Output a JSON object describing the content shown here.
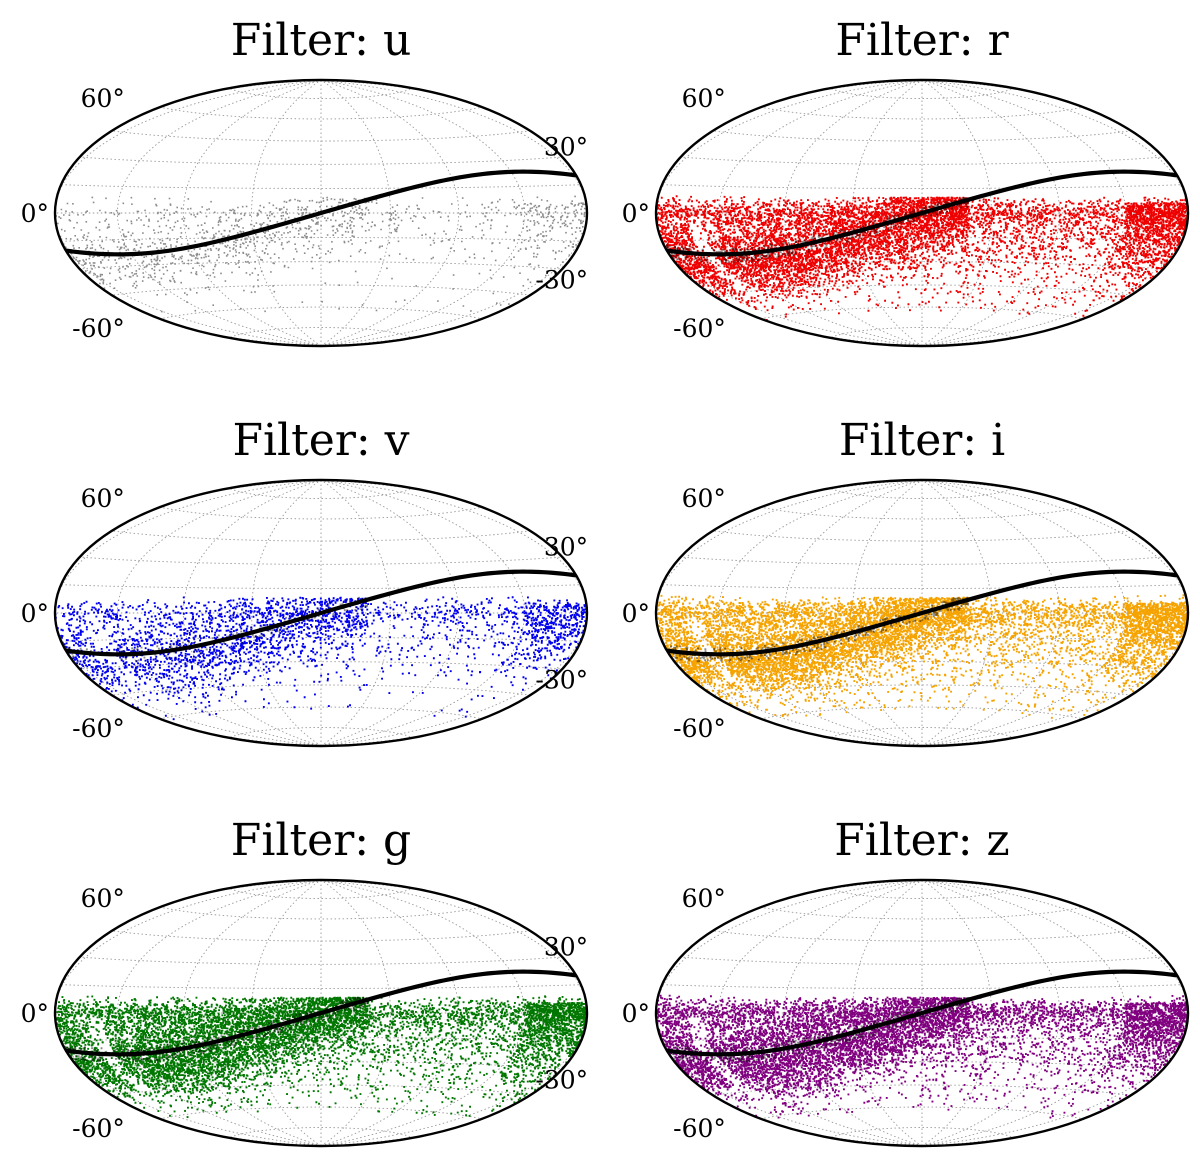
{
  "chart_data": [
    {
      "type": "scatter",
      "title": "Filter: u",
      "projection": "hammer",
      "point_color": "#8c8c8c",
      "density": "sparse",
      "ytick_labels": [
        "60°",
        "30°",
        "0°",
        "-30°",
        "-60°"
      ],
      "ytick_values": [
        60,
        30,
        0,
        -30,
        -60
      ],
      "grid": true,
      "ecliptic_amplitude_deg": 23.4
    },
    {
      "type": "scatter",
      "title": "Filter: r",
      "projection": "hammer",
      "point_color": "#ee0000",
      "density": "dense",
      "ytick_labels": [
        "60°",
        "30°",
        "0°",
        "-30°",
        "-60°"
      ],
      "ytick_values": [
        60,
        30,
        0,
        -30,
        -60
      ],
      "grid": true,
      "ecliptic_amplitude_deg": 23.4
    },
    {
      "type": "scatter",
      "title": "Filter: v",
      "projection": "hammer",
      "point_color": "#0000ee",
      "density": "medium",
      "ytick_labels": [
        "60°",
        "30°",
        "0°",
        "-30°",
        "-60°"
      ],
      "ytick_values": [
        60,
        30,
        0,
        -30,
        -60
      ],
      "grid": true,
      "ecliptic_amplitude_deg": 23.4
    },
    {
      "type": "scatter",
      "title": "Filter: i",
      "projection": "hammer",
      "point_color": "#f5a300",
      "density": "dense",
      "ytick_labels": [
        "60°",
        "30°",
        "0°",
        "-30°",
        "-60°"
      ],
      "ytick_values": [
        60,
        30,
        0,
        -30,
        -60
      ],
      "grid": true,
      "ecliptic_amplitude_deg": 23.4
    },
    {
      "type": "scatter",
      "title": "Filter: g",
      "projection": "hammer",
      "point_color": "#007700",
      "density": "dense",
      "ytick_labels": [
        "60°",
        "30°",
        "0°",
        "-30°",
        "-60°"
      ],
      "ytick_values": [
        60,
        30,
        0,
        -30,
        -60
      ],
      "grid": true,
      "ecliptic_amplitude_deg": 23.4
    },
    {
      "type": "scatter",
      "title": "Filter: z",
      "projection": "hammer",
      "point_color": "#800080",
      "density": "dense",
      "ytick_labels": [
        "60°",
        "30°",
        "0°",
        "-30°",
        "-60°"
      ],
      "ytick_values": [
        60,
        30,
        0,
        -30,
        -60
      ],
      "grid": true,
      "ecliptic_amplitude_deg": 23.4
    }
  ]
}
